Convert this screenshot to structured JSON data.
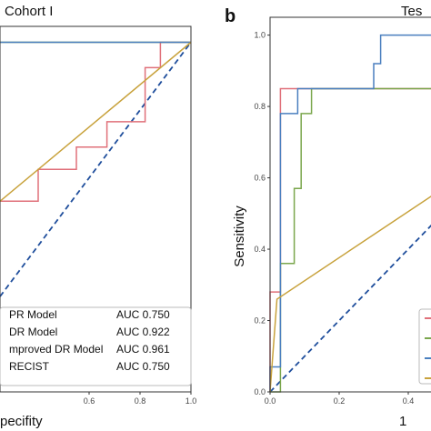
{
  "chart_data": [
    {
      "type": "line",
      "panel_label": "",
      "title": "Cohort I",
      "xlabel": "pecifity",
      "ylabel": "",
      "xlim": [
        0.25,
        1.0
      ],
      "ylim": [
        -0.1,
        1.05
      ],
      "grid": false,
      "legend_position": "bottom-right",
      "x_ticks": [
        "0.6",
        "0.8",
        "1.0"
      ],
      "x_tick_values": [
        0.6,
        0.8,
        1.0
      ],
      "y_ticks": [],
      "series": [
        {
          "name": "PR Model",
          "auc_label": "AUC 0.750",
          "color": "#e0707a",
          "points": [
            [
              0.25,
              0.5
            ],
            [
              0.4,
              0.5
            ],
            [
              0.4,
              0.6
            ],
            [
              0.45,
              0.6
            ],
            [
              0.55,
              0.6
            ],
            [
              0.55,
              0.67
            ],
            [
              0.67,
              0.67
            ],
            [
              0.67,
              0.75
            ],
            [
              0.82,
              0.75
            ],
            [
              0.82,
              0.92
            ],
            [
              0.88,
              0.92
            ],
            [
              0.88,
              1.0
            ],
            [
              1.0,
              1.0
            ]
          ]
        },
        {
          "name": "DR Model",
          "auc_label": "AUC 0.922",
          "color": "#7aa64c",
          "points": [
            [
              0.25,
              1.0
            ],
            [
              1.0,
              1.0
            ]
          ]
        },
        {
          "name": "mproved DR Model",
          "auc_label": "AUC 0.961",
          "color": "#4a7fbf",
          "points": [
            [
              0.25,
              1.0
            ],
            [
              1.0,
              1.0
            ]
          ]
        },
        {
          "name": "RECIST",
          "auc_label": "AUC 0.750",
          "color": "#c8a23c",
          "points": [
            [
              0.25,
              0.5
            ],
            [
              1.0,
              1.0
            ]
          ]
        }
      ],
      "reference_line": {
        "color": "#1f4e9c",
        "points": [
          [
            0.25,
            0.2
          ],
          [
            1.0,
            1.0
          ]
        ]
      }
    },
    {
      "type": "line",
      "panel_label": "b",
      "title": "Tes",
      "xlabel": "1",
      "ylabel": "Sensitivity",
      "xlim": [
        0.0,
        0.5
      ],
      "ylim": [
        0.0,
        1.05
      ],
      "grid": false,
      "legend_position": "bottom-right",
      "x_ticks": [
        "0.0",
        "0.2",
        "0.4"
      ],
      "x_tick_values": [
        0.0,
        0.2,
        0.4
      ],
      "y_ticks": [
        "0.0",
        "0.2",
        "0.4",
        "0.6",
        "0.8",
        "1.0"
      ],
      "y_tick_values": [
        0.0,
        0.2,
        0.4,
        0.6,
        0.8,
        1.0
      ],
      "series": [
        {
          "name": "",
          "color": "#e0707a",
          "points": [
            [
              0,
              0
            ],
            [
              0,
              0.28
            ],
            [
              0.03,
              0.28
            ],
            [
              0.03,
              0.85
            ],
            [
              0.5,
              0.85
            ]
          ]
        },
        {
          "name": "",
          "color": "#7aa64c",
          "points": [
            [
              0,
              0
            ],
            [
              0.03,
              0
            ],
            [
              0.03,
              0.36
            ],
            [
              0.07,
              0.36
            ],
            [
              0.07,
              0.57
            ],
            [
              0.09,
              0.57
            ],
            [
              0.09,
              0.78
            ],
            [
              0.12,
              0.78
            ],
            [
              0.12,
              0.85
            ],
            [
              0.5,
              0.85
            ]
          ]
        },
        {
          "name": "",
          "color": "#4a7fbf",
          "points": [
            [
              0,
              0
            ],
            [
              0,
              0.07
            ],
            [
              0.03,
              0.07
            ],
            [
              0.03,
              0.78
            ],
            [
              0.08,
              0.78
            ],
            [
              0.08,
              0.85
            ],
            [
              0.3,
              0.85
            ],
            [
              0.3,
              0.92
            ],
            [
              0.32,
              0.92
            ],
            [
              0.32,
              1.0
            ],
            [
              0.5,
              1.0
            ]
          ]
        },
        {
          "name": "",
          "color": "#c8a23c",
          "points": [
            [
              0,
              0
            ],
            [
              0.02,
              0.26
            ],
            [
              0.5,
              0.57
            ]
          ]
        }
      ],
      "reference_line": {
        "color": "#1f4e9c",
        "points": [
          [
            0,
            0
          ],
          [
            0.5,
            0.5
          ]
        ]
      }
    }
  ]
}
